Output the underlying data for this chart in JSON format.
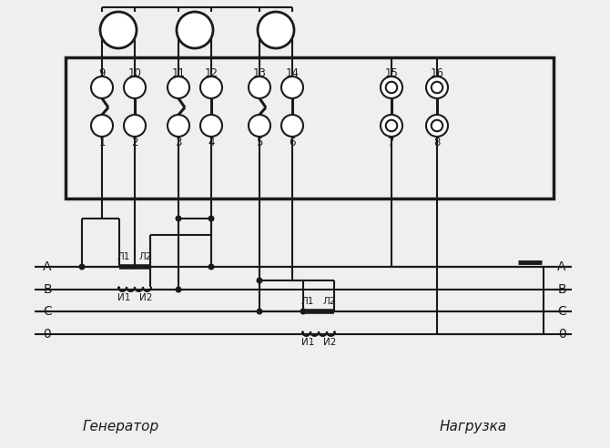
{
  "bg_color": "#efefef",
  "line_color": "#1a1a1a",
  "fig_width": 6.7,
  "fig_height": 4.92,
  "dpi": 100,
  "generator_label": "Генератор",
  "load_label": "Нагрузка",
  "terminal_top": [
    "9",
    "10",
    "11",
    "12",
    "13",
    "14",
    "15",
    "16"
  ],
  "terminal_bot": [
    "1",
    "2",
    "3",
    "4",
    "5",
    "6",
    "7",
    "8"
  ]
}
